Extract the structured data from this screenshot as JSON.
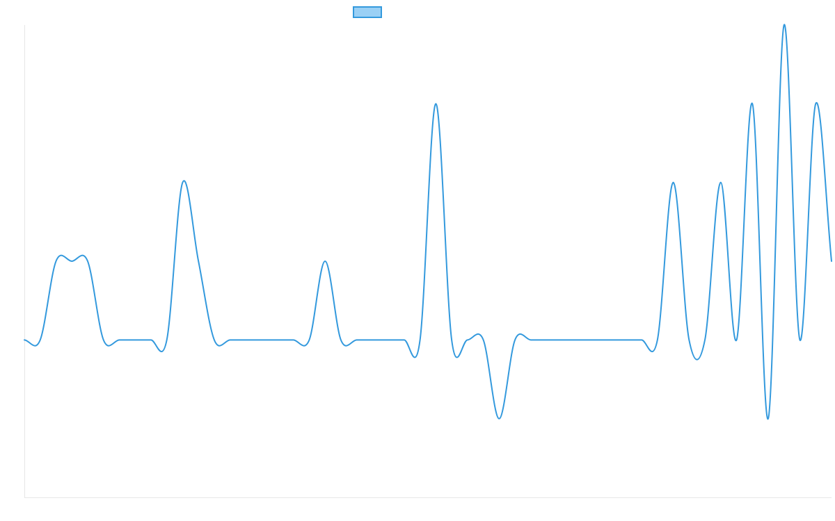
{
  "chart_data": {
    "type": "line",
    "title": "",
    "xlabel": "",
    "ylabel": "",
    "grid": false,
    "legend": "top-center",
    "xlim": [
      0,
      51
    ],
    "ylim": [
      -2,
      4
    ],
    "colors": {
      "line": "#3399dd",
      "legend_fill": "#9ad0f5"
    },
    "series": [
      {
        "label": "",
        "x": [
          0,
          1,
          2,
          3,
          4,
          5,
          6,
          7,
          8,
          9,
          10,
          11,
          12,
          13,
          14,
          15,
          16,
          17,
          18,
          19,
          20,
          21,
          22,
          23,
          24,
          25,
          26,
          27,
          28,
          29,
          30,
          31,
          32,
          33,
          34,
          35,
          36,
          37,
          38,
          39,
          40,
          41,
          42,
          43,
          44,
          45,
          46,
          47,
          48,
          49,
          50,
          51
        ],
        "y": [
          0,
          0,
          1,
          1,
          1,
          0,
          0,
          0,
          0,
          0,
          2,
          1,
          0,
          0,
          0,
          0,
          0,
          0,
          0,
          1,
          0,
          0,
          0,
          0,
          0,
          0,
          3,
          0,
          0,
          0,
          -1,
          0,
          0,
          0,
          0,
          0,
          0,
          0,
          0,
          0,
          0,
          2,
          0,
          0,
          2,
          0,
          3,
          -1,
          4,
          0,
          3,
          1
        ]
      }
    ]
  }
}
